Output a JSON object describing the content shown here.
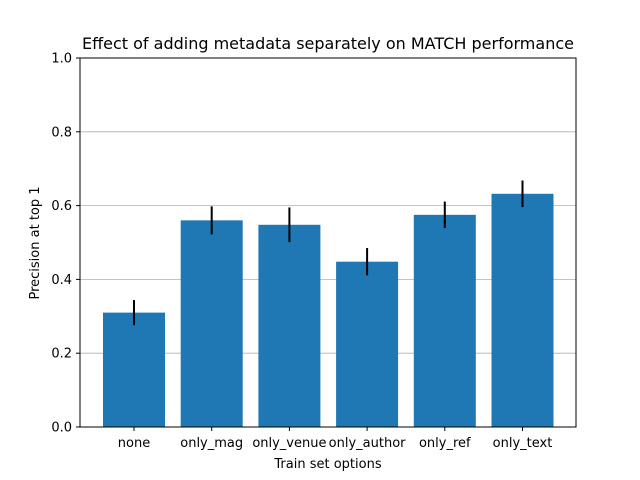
{
  "chart_data": {
    "type": "bar",
    "title": "Effect of adding metadata separately on MATCH performance",
    "xlabel": "Train set options",
    "ylabel": "Precision at top 1",
    "categories": [
      "none",
      "only_mag",
      "only_venue",
      "only_author",
      "only_ref",
      "only_text"
    ],
    "values": [
      0.31,
      0.56,
      0.548,
      0.448,
      0.575,
      0.632
    ],
    "errors": [
      0.034,
      0.038,
      0.047,
      0.037,
      0.036,
      0.036
    ],
    "ylim": [
      0,
      1.0
    ],
    "yticks": [
      "0.0",
      "0.2",
      "0.4",
      "0.6",
      "0.8",
      "1.0"
    ],
    "ytick_values": [
      0,
      0.2,
      0.4,
      0.6,
      0.8,
      1.0
    ],
    "grid": "y",
    "bar_color": "#1f77b4",
    "error_color": "#000000"
  }
}
